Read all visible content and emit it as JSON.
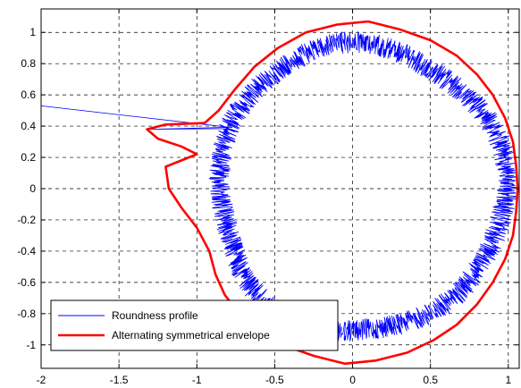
{
  "chart_data": {
    "type": "line",
    "title": "",
    "xlabel": "",
    "ylabel": "",
    "xlim": [
      -2,
      1.07
    ],
    "ylim": [
      -1.15,
      1.15
    ],
    "grid": true,
    "legend_position": "bottom-left",
    "xticks": [
      -2,
      -1.5,
      -1,
      -0.5,
      0,
      0.5,
      1
    ],
    "xtick_labels": [
      "-2",
      "-1.5",
      "-1",
      "-0.5",
      "0",
      "0.5",
      "1"
    ],
    "yticks": [
      1,
      0.8,
      0.6,
      0.4,
      0.2,
      0,
      -0.2,
      -0.4,
      -0.6,
      -0.8,
      -1
    ],
    "ytick_labels": [
      "1",
      "0.8",
      "0.6",
      "0.4",
      "0.2",
      "0",
      "-0.2",
      "-0.4",
      "-0.6",
      "-0.8",
      "-1"
    ],
    "series": [
      {
        "name": "Roundness profile",
        "color": "#0000ff",
        "style": "noisy polar profile around a near-circle of radius ~0.95 centred at (0.05, 0); one spike near angle 155 deg reaching (-2.0, 0.53)",
        "center": [
          0.05,
          0.0
        ],
        "mean_radius": 0.92,
        "noise_amplitude": 0.07,
        "outlier_points": [
          [
            -2.0,
            0.53
          ],
          [
            -1.3,
            0.38
          ]
        ]
      },
      {
        "name": "Alternating symmetrical envelope",
        "color": "#ff0000",
        "style": "wavy closed envelope around the profile with a lobe bulging to (-1.32, 0.38)",
        "points": [
          [
            1.06,
            0.0
          ],
          [
            1.05,
            0.15
          ],
          [
            1.03,
            0.3
          ],
          [
            0.98,
            0.45
          ],
          [
            0.9,
            0.6
          ],
          [
            0.8,
            0.73
          ],
          [
            0.67,
            0.85
          ],
          [
            0.5,
            0.95
          ],
          [
            0.3,
            1.02
          ],
          [
            0.1,
            1.07
          ],
          [
            -0.1,
            1.05
          ],
          [
            -0.3,
            1.0
          ],
          [
            -0.48,
            0.9
          ],
          [
            -0.63,
            0.78
          ],
          [
            -0.76,
            0.63
          ],
          [
            -0.86,
            0.5
          ],
          [
            -0.95,
            0.42
          ],
          [
            -1.2,
            0.41
          ],
          [
            -1.32,
            0.38
          ],
          [
            -1.25,
            0.32
          ],
          [
            -1.1,
            0.27
          ],
          [
            -1.0,
            0.22
          ],
          [
            -1.2,
            0.14
          ],
          [
            -1.18,
            0.0
          ],
          [
            -1.1,
            -0.12
          ],
          [
            -1.0,
            -0.25
          ],
          [
            -0.92,
            -0.4
          ],
          [
            -0.88,
            -0.55
          ],
          [
            -0.82,
            -0.68
          ],
          [
            -0.73,
            -0.8
          ],
          [
            -0.6,
            -0.91
          ],
          [
            -0.45,
            -1.0
          ],
          [
            -0.25,
            -1.07
          ],
          [
            -0.05,
            -1.12
          ],
          [
            0.15,
            -1.1
          ],
          [
            0.35,
            -1.05
          ],
          [
            0.52,
            -0.97
          ],
          [
            0.67,
            -0.87
          ],
          [
            0.8,
            -0.74
          ],
          [
            0.9,
            -0.6
          ],
          [
            0.98,
            -0.45
          ],
          [
            1.03,
            -0.3
          ],
          [
            1.05,
            -0.15
          ],
          [
            1.06,
            0.0
          ]
        ]
      }
    ]
  }
}
